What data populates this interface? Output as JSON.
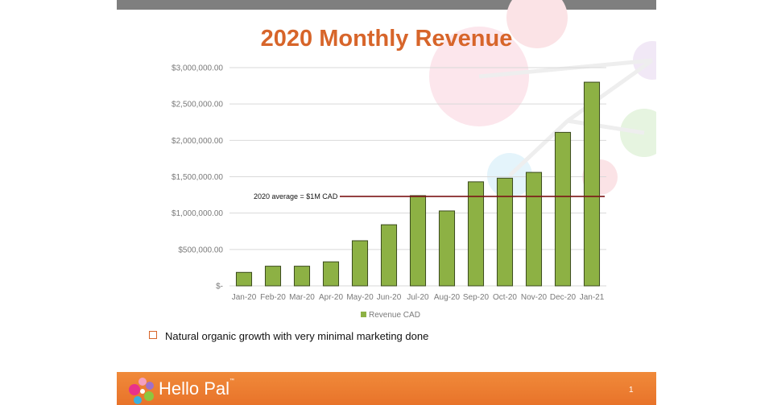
{
  "chart_data": {
    "type": "bar",
    "title": "2020 Monthly Revenue",
    "categories": [
      "Jan-20",
      "Feb-20",
      "Mar-20",
      "Apr-20",
      "May-20",
      "Jun-20",
      "Jul-20",
      "Aug-20",
      "Sep-20",
      "Oct-20",
      "Nov-20",
      "Dec-20",
      "Jan-21"
    ],
    "series": [
      {
        "name": "Revenue CAD",
        "values": [
          185000,
          270000,
          270000,
          330000,
          620000,
          840000,
          1240000,
          1030000,
          1430000,
          1480000,
          1560000,
          2110000,
          2800000
        ],
        "color": "#8db144"
      }
    ],
    "ylim": [
      0,
      3000000
    ],
    "yticks": [
      0,
      500000,
      1000000,
      1500000,
      2000000,
      2500000,
      3000000
    ],
    "ytick_labels": [
      "$-",
      "$500,000.00",
      "$1,000,000.00",
      "$1,500,000.00",
      "$2,000,000.00",
      "$2,500,000.00",
      "$3,000,000.00"
    ],
    "reference_line": {
      "value": 1230000,
      "label": "2020 average = $1M CAD",
      "color": "#7b1416"
    },
    "grid": true,
    "legend": "bottom"
  },
  "bullet": "Natural organic growth with very minimal marketing done",
  "footer": {
    "logo": "Hello Pal",
    "tm": "™",
    "page": "1"
  },
  "colors": {
    "accent": "#e8732a",
    "title": "#d7652a"
  }
}
